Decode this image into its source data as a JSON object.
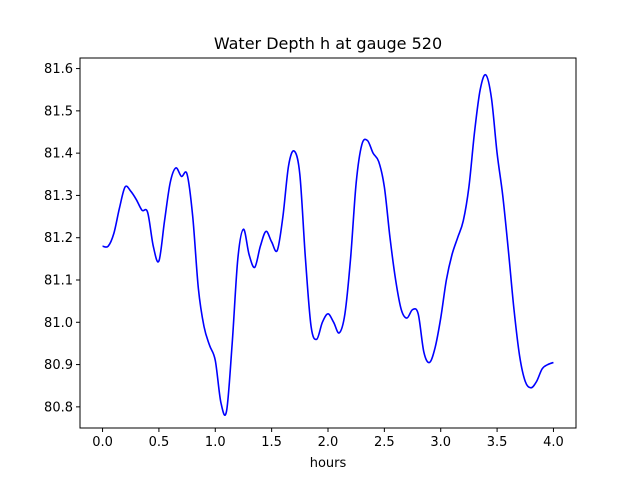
{
  "chart_data": {
    "type": "line",
    "title": "Water Depth h at gauge 520",
    "xlabel": "hours",
    "ylabel": "",
    "xlim": [
      -0.2,
      4.2
    ],
    "ylim": [
      80.75,
      81.625
    ],
    "xticks": [
      0.0,
      0.5,
      1.0,
      1.5,
      2.0,
      2.5,
      3.0,
      3.5,
      4.0
    ],
    "xtick_labels": [
      "0.0",
      "0.5",
      "1.0",
      "1.5",
      "2.0",
      "2.5",
      "3.0",
      "3.5",
      "4.0"
    ],
    "yticks": [
      80.8,
      80.9,
      81.0,
      81.1,
      81.2,
      81.3,
      81.4,
      81.5,
      81.6
    ],
    "ytick_labels": [
      "80.8",
      "80.9",
      "81.0",
      "81.1",
      "81.2",
      "81.3",
      "81.4",
      "81.5",
      "81.6"
    ],
    "grid": false,
    "series": [
      {
        "color": "#0000ff",
        "x": [
          0.0,
          0.05,
          0.1,
          0.15,
          0.2,
          0.25,
          0.3,
          0.35,
          0.4,
          0.45,
          0.5,
          0.55,
          0.6,
          0.65,
          0.7,
          0.75,
          0.8,
          0.85,
          0.9,
          0.95,
          1.0,
          1.05,
          1.1,
          1.15,
          1.2,
          1.25,
          1.3,
          1.35,
          1.4,
          1.45,
          1.5,
          1.55,
          1.6,
          1.65,
          1.7,
          1.75,
          1.8,
          1.85,
          1.9,
          1.95,
          2.0,
          2.05,
          2.1,
          2.15,
          2.2,
          2.25,
          2.3,
          2.35,
          2.4,
          2.45,
          2.5,
          2.55,
          2.6,
          2.65,
          2.7,
          2.75,
          2.8,
          2.85,
          2.9,
          2.95,
          3.0,
          3.05,
          3.1,
          3.15,
          3.2,
          3.25,
          3.3,
          3.35,
          3.4,
          3.45,
          3.5,
          3.55,
          3.6,
          3.65,
          3.7,
          3.75,
          3.8,
          3.85,
          3.9,
          3.95,
          4.0
        ],
        "y": [
          81.18,
          81.18,
          81.21,
          81.27,
          81.32,
          81.31,
          81.29,
          81.265,
          81.26,
          81.18,
          81.145,
          81.24,
          81.33,
          81.365,
          81.345,
          81.35,
          81.25,
          81.08,
          80.99,
          80.945,
          80.91,
          80.81,
          80.79,
          80.95,
          81.15,
          81.22,
          81.16,
          81.13,
          81.18,
          81.215,
          81.19,
          81.17,
          81.25,
          81.37,
          81.405,
          81.35,
          81.15,
          80.99,
          80.96,
          81.0,
          81.02,
          81.0,
          80.975,
          81.02,
          81.15,
          81.33,
          81.42,
          81.43,
          81.4,
          81.38,
          81.32,
          81.2,
          81.1,
          81.03,
          81.01,
          81.03,
          81.02,
          80.93,
          80.905,
          80.94,
          81.01,
          81.1,
          81.16,
          81.2,
          81.24,
          81.32,
          81.45,
          81.55,
          81.585,
          81.53,
          81.4,
          81.3,
          81.17,
          81.03,
          80.92,
          80.86,
          80.845,
          80.86,
          80.89,
          80.9,
          80.905
        ]
      }
    ]
  }
}
